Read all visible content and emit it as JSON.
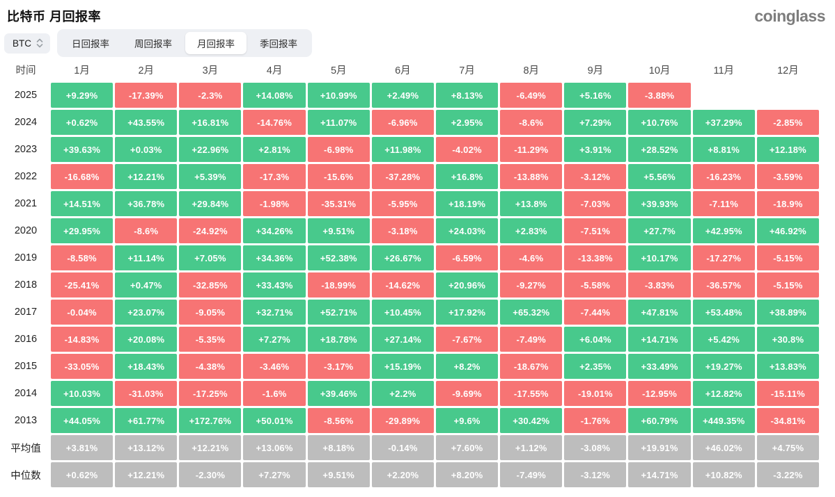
{
  "header": {
    "title": "比特币 月回报率",
    "logo": "coinglass"
  },
  "toolbar": {
    "coin": "BTC",
    "coin_selector_icon": "chevron-updown-icon",
    "tabs": [
      {
        "key": "daily",
        "label": "日回报率",
        "active": false
      },
      {
        "key": "weekly",
        "label": "周回报率",
        "active": false
      },
      {
        "key": "monthly",
        "label": "月回报率",
        "active": true
      },
      {
        "key": "quarterly",
        "label": "季回报率",
        "active": false
      }
    ]
  },
  "colors": {
    "positive": "#48c98c",
    "negative": "#f77474",
    "summary": "#bdbdbd",
    "chip_bg": "#eef0f4"
  },
  "table": {
    "time_header": "时间",
    "month_headers": [
      "1月",
      "2月",
      "3月",
      "4月",
      "5月",
      "6月",
      "7月",
      "8月",
      "9月",
      "10月",
      "11月",
      "12月"
    ],
    "rows": [
      {
        "label": "2025",
        "type": "year",
        "values": [
          "+9.29%",
          "-17.39%",
          "-2.3%",
          "+14.08%",
          "+10.99%",
          "+2.49%",
          "+8.13%",
          "-6.49%",
          "+5.16%",
          "-3.88%",
          "",
          ""
        ]
      },
      {
        "label": "2024",
        "type": "year",
        "values": [
          "+0.62%",
          "+43.55%",
          "+16.81%",
          "-14.76%",
          "+11.07%",
          "-6.96%",
          "+2.95%",
          "-8.6%",
          "+7.29%",
          "+10.76%",
          "+37.29%",
          "-2.85%"
        ]
      },
      {
        "label": "2023",
        "type": "year",
        "values": [
          "+39.63%",
          "+0.03%",
          "+22.96%",
          "+2.81%",
          "-6.98%",
          "+11.98%",
          "-4.02%",
          "-11.29%",
          "+3.91%",
          "+28.52%",
          "+8.81%",
          "+12.18%"
        ]
      },
      {
        "label": "2022",
        "type": "year",
        "values": [
          "-16.68%",
          "+12.21%",
          "+5.39%",
          "-17.3%",
          "-15.6%",
          "-37.28%",
          "+16.8%",
          "-13.88%",
          "-3.12%",
          "+5.56%",
          "-16.23%",
          "-3.59%"
        ]
      },
      {
        "label": "2021",
        "type": "year",
        "values": [
          "+14.51%",
          "+36.78%",
          "+29.84%",
          "-1.98%",
          "-35.31%",
          "-5.95%",
          "+18.19%",
          "+13.8%",
          "-7.03%",
          "+39.93%",
          "-7.11%",
          "-18.9%"
        ]
      },
      {
        "label": "2020",
        "type": "year",
        "values": [
          "+29.95%",
          "-8.6%",
          "-24.92%",
          "+34.26%",
          "+9.51%",
          "-3.18%",
          "+24.03%",
          "+2.83%",
          "-7.51%",
          "+27.7%",
          "+42.95%",
          "+46.92%"
        ]
      },
      {
        "label": "2019",
        "type": "year",
        "values": [
          "-8.58%",
          "+11.14%",
          "+7.05%",
          "+34.36%",
          "+52.38%",
          "+26.67%",
          "-6.59%",
          "-4.6%",
          "-13.38%",
          "+10.17%",
          "-17.27%",
          "-5.15%"
        ]
      },
      {
        "label": "2018",
        "type": "year",
        "values": [
          "-25.41%",
          "+0.47%",
          "-32.85%",
          "+33.43%",
          "-18.99%",
          "-14.62%",
          "+20.96%",
          "-9.27%",
          "-5.58%",
          "-3.83%",
          "-36.57%",
          "-5.15%"
        ]
      },
      {
        "label": "2017",
        "type": "year",
        "values": [
          "-0.04%",
          "+23.07%",
          "-9.05%",
          "+32.71%",
          "+52.71%",
          "+10.45%",
          "+17.92%",
          "+65.32%",
          "-7.44%",
          "+47.81%",
          "+53.48%",
          "+38.89%"
        ]
      },
      {
        "label": "2016",
        "type": "year",
        "values": [
          "-14.83%",
          "+20.08%",
          "-5.35%",
          "+7.27%",
          "+18.78%",
          "+27.14%",
          "-7.67%",
          "-7.49%",
          "+6.04%",
          "+14.71%",
          "+5.42%",
          "+30.8%"
        ]
      },
      {
        "label": "2015",
        "type": "year",
        "values": [
          "-33.05%",
          "+18.43%",
          "-4.38%",
          "-3.46%",
          "-3.17%",
          "+15.19%",
          "+8.2%",
          "-18.67%",
          "+2.35%",
          "+33.49%",
          "+19.27%",
          "+13.83%"
        ]
      },
      {
        "label": "2014",
        "type": "year",
        "values": [
          "+10.03%",
          "-31.03%",
          "-17.25%",
          "-1.6%",
          "+39.46%",
          "+2.2%",
          "-9.69%",
          "-17.55%",
          "-19.01%",
          "-12.95%",
          "+12.82%",
          "-15.11%"
        ]
      },
      {
        "label": "2013",
        "type": "year",
        "values": [
          "+44.05%",
          "+61.77%",
          "+172.76%",
          "+50.01%",
          "-8.56%",
          "-29.89%",
          "+9.6%",
          "+30.42%",
          "-1.76%",
          "+60.79%",
          "+449.35%",
          "-34.81%"
        ]
      },
      {
        "label": "平均值",
        "type": "summary",
        "values": [
          "+3.81%",
          "+13.12%",
          "+12.21%",
          "+13.06%",
          "+8.18%",
          "-0.14%",
          "+7.60%",
          "+1.12%",
          "-3.08%",
          "+19.91%",
          "+46.02%",
          "+4.75%"
        ]
      },
      {
        "label": "中位数",
        "type": "summary",
        "values": [
          "+0.62%",
          "+12.21%",
          "-2.30%",
          "+7.27%",
          "+9.51%",
          "+2.20%",
          "+8.20%",
          "-7.49%",
          "-3.12%",
          "+14.71%",
          "+10.82%",
          "-3.22%"
        ]
      }
    ]
  }
}
